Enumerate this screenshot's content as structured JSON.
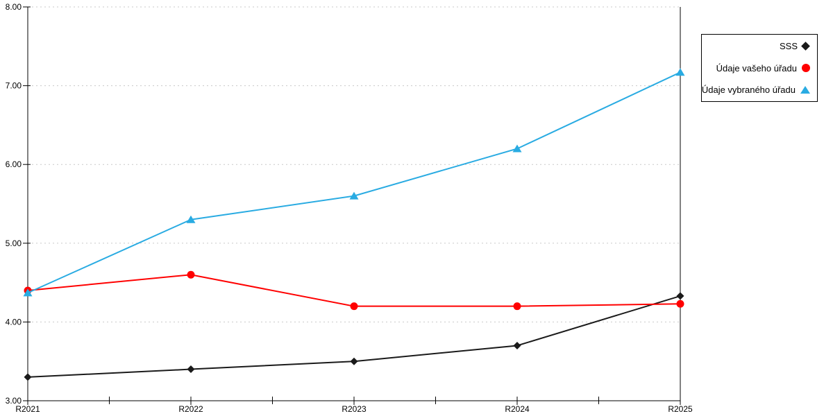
{
  "chart_data": {
    "type": "line",
    "title": "",
    "xlabel": "",
    "ylabel": "",
    "categories": [
      "R2021",
      "R2022",
      "R2023",
      "R2024",
      "R2025"
    ],
    "series": [
      {
        "name": "SSS",
        "marker": "diamond",
        "color": "#1a1a1a",
        "values": [
          3.3,
          3.4,
          3.5,
          3.7,
          4.33
        ]
      },
      {
        "name": "Údaje vašeho úřadu",
        "marker": "circle",
        "color": "#ff0000",
        "values": [
          4.4,
          4.6,
          4.2,
          4.2,
          4.23
        ]
      },
      {
        "name": "Údaje vybraného úřadu",
        "marker": "triangle",
        "color": "#29abe2",
        "values": [
          4.37,
          5.3,
          5.6,
          6.2,
          7.17
        ]
      }
    ],
    "ylim": [
      3,
      8
    ],
    "yticks": [
      3,
      4,
      5,
      6,
      7,
      8
    ],
    "ytick_labels": [
      "3.00",
      "4.00",
      "5.00",
      "6.00",
      "7.00",
      "8.00"
    ],
    "grid": "horizontal-dotted",
    "grid_color": "#c8c8c8",
    "axis_color": "#000000",
    "legend_position": "outside-top-right"
  }
}
